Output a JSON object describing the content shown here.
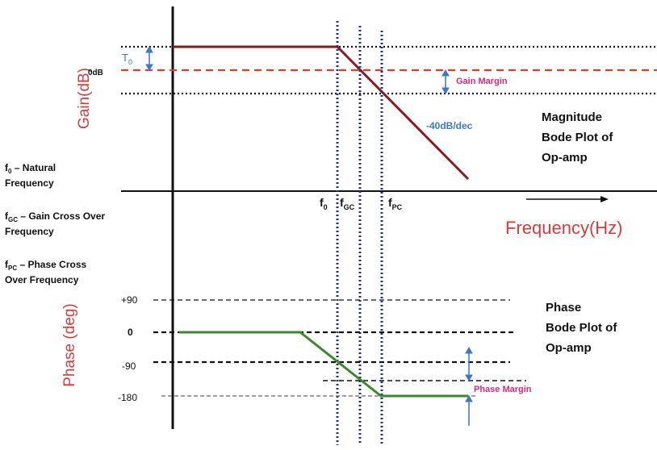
{
  "gain_axis_label": "Gain(dB)",
  "phase_axis_label": "Phase (deg)",
  "frequency_axis_label": "Frequency(Hz)",
  "zero_db_label": "0dB",
  "t0": {
    "main": "T",
    "sub": "0"
  },
  "gain_margin_label": "Gain Margin",
  "phase_margin_label": "Phase Margin",
  "slope_label": "-40dB/dec",
  "magnitude_title": [
    "Magnitude",
    "Bode Plot of",
    "Op-amp"
  ],
  "phase_title": [
    "Phase",
    "Bode Plot of",
    "Op-amp"
  ],
  "freq_markers": [
    {
      "main": "f",
      "sub": "0"
    },
    {
      "main": "f",
      "sub": "GC"
    },
    {
      "main": "f",
      "sub": "PC"
    }
  ],
  "legend": [
    {
      "sym": "f",
      "sub": "0",
      "lines": [
        " – Natural",
        "Frequency"
      ]
    },
    {
      "sym": "f",
      "sub": "GC",
      "lines": " – Gain Cross Over|Frequency"
    },
    {
      "sym": "f",
      "sub": "PC",
      "lines": "– Phase Cross|Over Frequency"
    }
  ],
  "phase_ticks": [
    "+90",
    "0",
    "-90",
    "-180"
  ],
  "colors": {
    "gain_curve": "#8b1a1a",
    "phase_curve": "#3a8a2a",
    "axis_label_red": "#d93a3a",
    "zero_db_line": "#e8392b",
    "annotation_blue": "#3c78c8",
    "margin_pink": "#e0287a",
    "marker_blue": "#1f2f9e"
  }
}
